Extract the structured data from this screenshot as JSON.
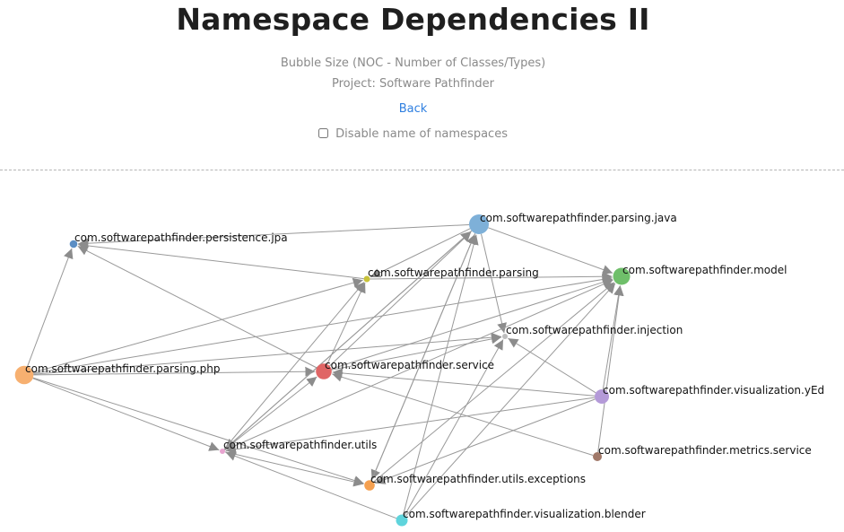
{
  "header": {
    "title": "Namespace Dependencies II",
    "subtitle": "Bubble Size (NOC - Number of Classes/Types)",
    "project": "Project: Software Pathfinder",
    "back_label": "Back",
    "disable_names_label": "Disable name of namespaces",
    "disable_names_checked": false
  },
  "graph": {
    "nodes": [
      {
        "id": "parsing_java",
        "label": "com.softwarepathfinder.parsing.java",
        "color": "#7eb0d8",
        "noc_rank": 1
      },
      {
        "id": "persistence_jpa",
        "label": "com.softwarepathfinder.persistence.jpa",
        "color": "#5b8ec4",
        "noc_rank": 10
      },
      {
        "id": "parsing",
        "label": "com.softwarepathfinder.parsing",
        "color": "#c8c23a",
        "noc_rank": 11
      },
      {
        "id": "model",
        "label": "com.softwarepathfinder.model",
        "color": "#6fbf6a",
        "noc_rank": 3
      },
      {
        "id": "injection",
        "label": "com.softwarepathfinder.injection",
        "color": "#bdbdbd",
        "noc_rank": 13
      },
      {
        "id": "parsing_php",
        "label": "com.softwarepathfinder.parsing.php",
        "color": "#f7b070",
        "noc_rank": 2
      },
      {
        "id": "service",
        "label": "com.softwarepathfinder.service",
        "color": "#e06565",
        "noc_rank": 4
      },
      {
        "id": "visualization_yed",
        "label": "com.softwarepathfinder.visualization.yEd",
        "color": "#b49ad8",
        "noc_rank": 5
      },
      {
        "id": "utils",
        "label": "com.softwarepathfinder.utils",
        "color": "#e8a4d0",
        "noc_rank": 12
      },
      {
        "id": "metrics_service",
        "label": "com.softwarepathfinder.metrics.service",
        "color": "#a07868",
        "noc_rank": 9
      },
      {
        "id": "utils_exceptions",
        "label": "com.softwarepathfinder.utils.exceptions",
        "color": "#f5a050",
        "noc_rank": 8
      },
      {
        "id": "visualization_blender",
        "label": "com.softwarepathfinder.visualization.blender",
        "color": "#5fd4dc",
        "noc_rank": 7
      }
    ],
    "edges": [
      [
        "parsing_php",
        "persistence_jpa"
      ],
      [
        "parsing_php",
        "parsing"
      ],
      [
        "parsing_php",
        "model"
      ],
      [
        "parsing_php",
        "injection"
      ],
      [
        "parsing_php",
        "service"
      ],
      [
        "parsing_php",
        "utils"
      ],
      [
        "parsing_php",
        "utils_exceptions"
      ],
      [
        "parsing_java",
        "persistence_jpa"
      ],
      [
        "parsing_java",
        "parsing"
      ],
      [
        "parsing_java",
        "model"
      ],
      [
        "parsing_java",
        "injection"
      ],
      [
        "parsing_java",
        "utils"
      ],
      [
        "parsing_java",
        "utils_exceptions"
      ],
      [
        "parsing",
        "persistence_jpa"
      ],
      [
        "parsing",
        "model"
      ],
      [
        "service",
        "persistence_jpa"
      ],
      [
        "service",
        "parsing_java"
      ],
      [
        "service",
        "parsing"
      ],
      [
        "service",
        "model"
      ],
      [
        "service",
        "injection"
      ],
      [
        "utils",
        "parsing"
      ],
      [
        "utils",
        "parsing_java"
      ],
      [
        "utils",
        "service"
      ],
      [
        "utils",
        "model"
      ],
      [
        "utils",
        "utils_exceptions"
      ],
      [
        "visualization_yed",
        "model"
      ],
      [
        "visualization_yed",
        "injection"
      ],
      [
        "visualization_yed",
        "service"
      ],
      [
        "visualization_yed",
        "utils"
      ],
      [
        "visualization_yed",
        "utils_exceptions"
      ],
      [
        "metrics_service",
        "model"
      ],
      [
        "metrics_service",
        "service"
      ],
      [
        "visualization_blender",
        "parsing_java"
      ],
      [
        "visualization_blender",
        "model"
      ],
      [
        "visualization_blender",
        "injection"
      ],
      [
        "visualization_blender",
        "utils"
      ],
      [
        "utils_exceptions",
        "parsing_java"
      ],
      [
        "utils_exceptions",
        "model"
      ]
    ]
  }
}
